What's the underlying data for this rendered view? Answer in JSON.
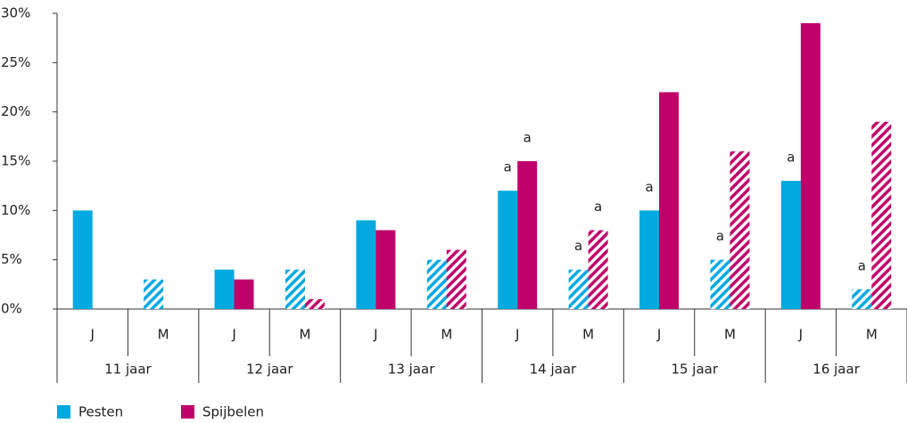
{
  "chart_data": {
    "type": "bar",
    "categories": [
      "J",
      "M",
      "J",
      "M",
      "J",
      "M",
      "J",
      "M",
      "J",
      "M",
      "J",
      "M"
    ],
    "groups": [
      "11 jaar",
      "12 jaar",
      "13 jaar",
      "14 jaar",
      "15 jaar",
      "16 jaar"
    ],
    "hatch": [
      false,
      true,
      false,
      true,
      false,
      true,
      false,
      true,
      false,
      true,
      false,
      true
    ],
    "series": [
      {
        "name": "Pesten",
        "color": "#00a9e0",
        "values": [
          10,
          3,
          4,
          4,
          9,
          5,
          12,
          4,
          10,
          5,
          13,
          2
        ],
        "annotations": [
          null,
          null,
          null,
          null,
          null,
          null,
          "a",
          "a",
          "a",
          "a",
          "a",
          "a"
        ]
      },
      {
        "name": "Spijbelen",
        "color": "#c0006a",
        "values": [
          0,
          0,
          3,
          1,
          8,
          6,
          15,
          8,
          22,
          16,
          29,
          19
        ],
        "annotations": [
          null,
          null,
          null,
          null,
          null,
          null,
          "a",
          "a",
          null,
          null,
          null,
          null
        ]
      }
    ],
    "ylim": [
      0,
      30
    ],
    "yticks": [
      {
        "value": 0,
        "label": "0%"
      },
      {
        "value": 5,
        "label": "5%"
      },
      {
        "value": 10,
        "label": "10%"
      },
      {
        "value": 15,
        "label": "15%"
      },
      {
        "value": 20,
        "label": "20%"
      },
      {
        "value": 25,
        "label": "25%"
      },
      {
        "value": 30,
        "label": "30%"
      }
    ]
  }
}
